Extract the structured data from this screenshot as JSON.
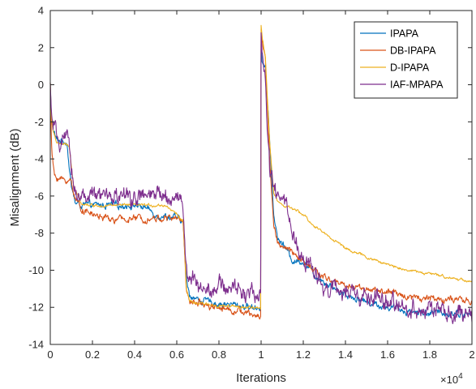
{
  "chart_data": {
    "type": "line",
    "xlabel": "Iterations",
    "ylabel": "Misalignment (dB)",
    "x_exponent_label": "×10",
    "x_exponent_power": "4",
    "xlim": [
      0,
      2
    ],
    "ylim": [
      -14,
      4
    ],
    "xticks": [
      0,
      0.2,
      0.4,
      0.6,
      0.8,
      1,
      1.2,
      1.4,
      1.6,
      1.8,
      2
    ],
    "xtick_labels": [
      "0",
      "0.2",
      "0.4",
      "0.6",
      "0.8",
      "1",
      "1.2",
      "1.4",
      "1.6",
      "1.8",
      "2"
    ],
    "yticks": [
      4,
      2,
      0,
      -2,
      -4,
      -6,
      -8,
      -10,
      -12,
      -14
    ],
    "ytick_labels": [
      "4",
      "2",
      "0",
      "-2",
      "-4",
      "-6",
      "-8",
      "-10",
      "-12",
      "-14"
    ],
    "grid": false,
    "legend_position": "top-right",
    "series": [
      {
        "name": "IPAPA",
        "color": "#0072BD",
        "noise": 0.12,
        "x": [
          0,
          0.005,
          0.015,
          0.03,
          0.06,
          0.08,
          0.09,
          0.1,
          0.12,
          0.15,
          0.2,
          0.3,
          0.4,
          0.45,
          0.5,
          0.55,
          0.58,
          0.6,
          0.63,
          0.64,
          0.645,
          0.66,
          0.7,
          0.8,
          0.9,
          0.95,
          0.999,
          1.0,
          1.005,
          1.02,
          1.04,
          1.06,
          1.08,
          1.1,
          1.15,
          1.2,
          1.25,
          1.3,
          1.35,
          1.4,
          1.5,
          1.6,
          1.7,
          1.8,
          1.9,
          2.0
        ],
        "y": [
          0.1,
          -1.8,
          -2.5,
          -3.0,
          -3.0,
          -3.1,
          -4.5,
          -5.5,
          -6.4,
          -6.5,
          -6.5,
          -6.5,
          -6.5,
          -6.6,
          -7.0,
          -7.1,
          -7.15,
          -7.2,
          -7.4,
          -9.5,
          -10.5,
          -11.3,
          -11.6,
          -11.8,
          -11.9,
          -12.0,
          -12.0,
          2.2,
          1.2,
          1.0,
          -3.0,
          -7.0,
          -8.4,
          -8.5,
          -9.5,
          -9.5,
          -10.2,
          -10.6,
          -11.0,
          -11.3,
          -11.7,
          -12.0,
          -12.2,
          -12.3,
          -12.3,
          -12.4
        ]
      },
      {
        "name": "DB-IPAPA",
        "color": "#D95319",
        "noise": 0.12,
        "x": [
          0,
          0.005,
          0.01,
          0.02,
          0.05,
          0.1,
          0.12,
          0.15,
          0.2,
          0.3,
          0.4,
          0.5,
          0.55,
          0.6,
          0.63,
          0.64,
          0.645,
          0.66,
          0.7,
          0.8,
          0.9,
          0.95,
          0.999,
          1.0,
          1.005,
          1.02,
          1.04,
          1.06,
          1.08,
          1.1,
          1.15,
          1.2,
          1.25,
          1.3,
          1.4,
          1.5,
          1.6,
          1.7,
          1.8,
          1.9,
          2.0
        ],
        "y": [
          0.1,
          -3.0,
          -4.0,
          -4.9,
          -5.1,
          -5.2,
          -6.2,
          -6.7,
          -7.0,
          -7.3,
          -7.2,
          -7.2,
          -7.2,
          -7.2,
          -7.3,
          -9.5,
          -11.0,
          -11.8,
          -11.7,
          -12.0,
          -12.2,
          -12.4,
          -12.5,
          3.0,
          2.3,
          1.5,
          -4.0,
          -7.5,
          -8.5,
          -8.8,
          -9.0,
          -9.6,
          -10.0,
          -10.4,
          -10.8,
          -11.0,
          -11.2,
          -11.4,
          -11.5,
          -11.6,
          -11.7
        ]
      },
      {
        "name": "D-IPAPA",
        "color": "#EDB120",
        "noise": 0.05,
        "x": [
          0,
          0.005,
          0.015,
          0.03,
          0.06,
          0.09,
          0.11,
          0.15,
          0.2,
          0.3,
          0.4,
          0.5,
          0.55,
          0.58,
          0.6,
          0.63,
          0.64,
          0.645,
          0.66,
          0.7,
          0.8,
          0.9,
          0.95,
          0.999,
          1.0,
          1.005,
          1.02,
          1.04,
          1.06,
          1.08,
          1.1,
          1.15,
          1.2,
          1.25,
          1.3,
          1.4,
          1.5,
          1.6,
          1.7,
          1.8,
          1.9,
          2.0
        ],
        "y": [
          0.1,
          -1.8,
          -2.6,
          -3.1,
          -3.2,
          -3.3,
          -5.5,
          -6.4,
          -6.5,
          -6.5,
          -6.5,
          -6.5,
          -6.5,
          -6.8,
          -7.0,
          -7.3,
          -9.5,
          -11.0,
          -11.7,
          -11.8,
          -11.9,
          -12.0,
          -12.0,
          -12.1,
          3.2,
          2.6,
          1.5,
          -3.0,
          -5.8,
          -6.3,
          -6.5,
          -6.7,
          -7.0,
          -7.6,
          -8.0,
          -8.8,
          -9.3,
          -9.7,
          -10.0,
          -10.2,
          -10.4,
          -10.6
        ]
      },
      {
        "name": "IAF-MPAPA",
        "color": "#7E2F8E",
        "noise": 0.32,
        "x": [
          0,
          0.005,
          0.01,
          0.03,
          0.06,
          0.08,
          0.1,
          0.12,
          0.15,
          0.2,
          0.3,
          0.4,
          0.5,
          0.55,
          0.6,
          0.62,
          0.63,
          0.64,
          0.645,
          0.66,
          0.7,
          0.8,
          0.9,
          0.95,
          0.999,
          1.0,
          1.005,
          1.02,
          1.04,
          1.06,
          1.08,
          1.1,
          1.12,
          1.15,
          1.2,
          1.25,
          1.3,
          1.4,
          1.5,
          1.6,
          1.7,
          1.8,
          1.9,
          2.0
        ],
        "y": [
          0.1,
          -1.5,
          -2.0,
          -3.0,
          -3.0,
          -3.0,
          -4.5,
          -5.8,
          -6.0,
          -6.1,
          -6.0,
          -6.1,
          -6.0,
          -6.0,
          -6.1,
          -6.0,
          -6.5,
          -9.0,
          -10.0,
          -10.5,
          -10.8,
          -10.9,
          -11.0,
          -11.3,
          -11.2,
          2.8,
          1.5,
          0.0,
          -4.5,
          -5.8,
          -6.0,
          -6.2,
          -6.6,
          -8.2,
          -9.5,
          -10.0,
          -10.8,
          -11.3,
          -11.5,
          -11.8,
          -12.0,
          -12.1,
          -12.4,
          -12.5
        ]
      }
    ]
  }
}
